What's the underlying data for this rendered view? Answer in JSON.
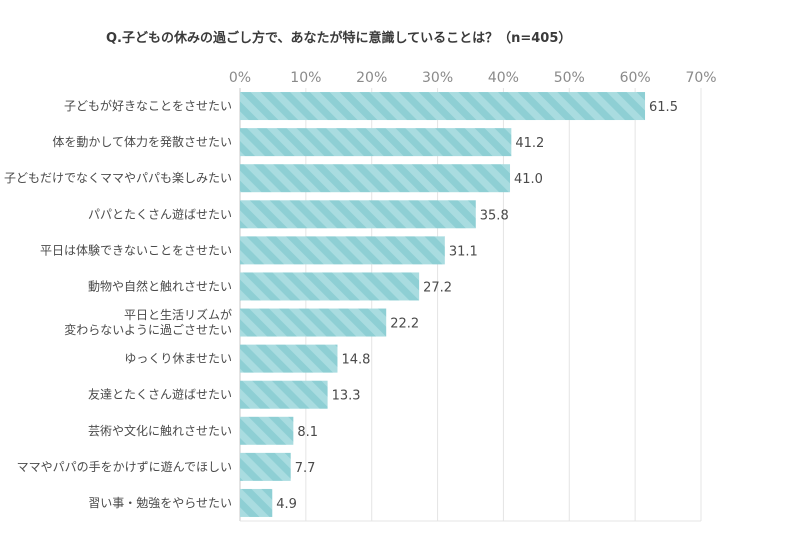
{
  "chart_data": {
    "type": "bar",
    "orientation": "horizontal",
    "title": "Q.子どもの休みの過ごし方で、あなたが特に意識していることは？（n=405）",
    "xlabel": "",
    "ylabel": "",
    "xlim": [
      0,
      70
    ],
    "ticks": [
      0,
      10,
      20,
      30,
      40,
      50,
      60,
      70
    ],
    "tick_labels": [
      "0%",
      "10%",
      "20%",
      "30%",
      "40%",
      "50%",
      "60%",
      "70%"
    ],
    "categories": [
      [
        "子どもが好きなことをさせたい"
      ],
      [
        "体を動かして体力を発散させたい"
      ],
      [
        "子どもだけでなくママやパパも楽しみたい"
      ],
      [
        "パパとたくさん遊ばせたい"
      ],
      [
        "平日は体験できないことをさせたい"
      ],
      [
        "動物や自然と触れさせたい"
      ],
      [
        "平日と生活リズムが",
        "変わらないように過ごさせたい"
      ],
      [
        "ゆっくり休ませたい"
      ],
      [
        "友達とたくさん遊ばせたい"
      ],
      [
        "芸術や文化に触れさせたい"
      ],
      [
        "ママやパパの手をかけずに遊んでほしい"
      ],
      [
        "習い事・勉強をやらせたい"
      ]
    ],
    "values": [
      61.5,
      41.2,
      41.0,
      35.8,
      31.1,
      27.2,
      22.2,
      14.8,
      13.3,
      8.1,
      7.7,
      4.9
    ],
    "value_labels": [
      "61.5",
      "41.2",
      "41.0",
      "35.8",
      "31.1",
      "27.2",
      "22.2",
      "14.8",
      "13.3",
      "8.1",
      "7.7",
      "4.9"
    ],
    "bar_color": "#8ecfd4",
    "bar_stripe_color": "#a9dce0",
    "grid": true,
    "legend": "none"
  }
}
